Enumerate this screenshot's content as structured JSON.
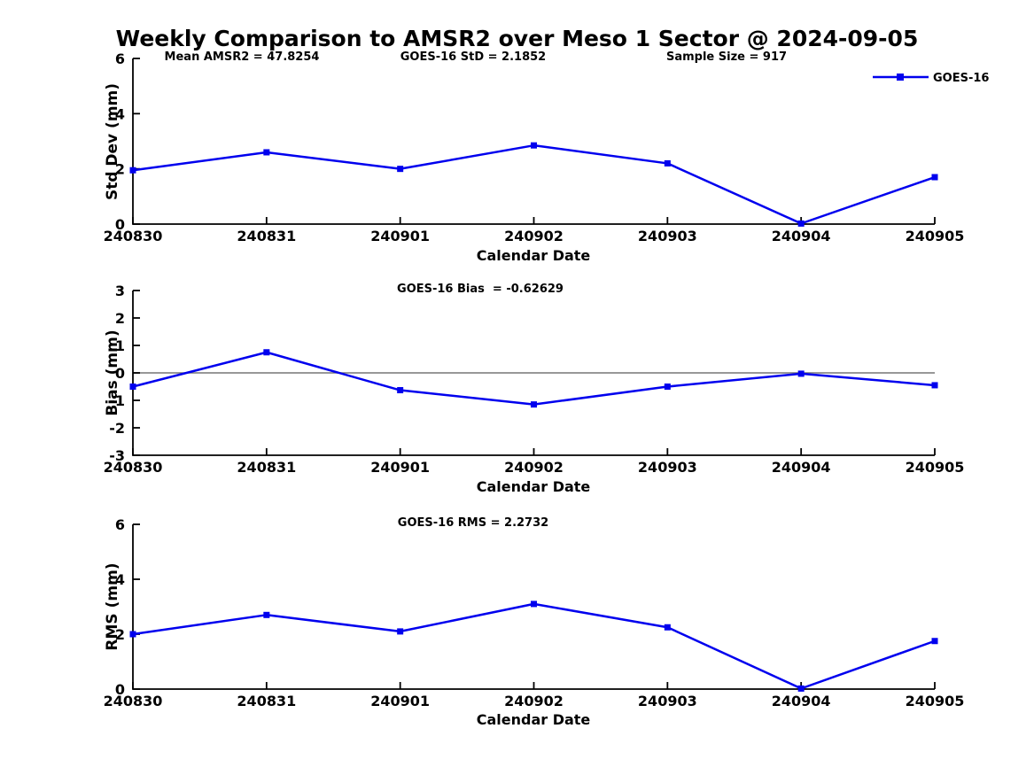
{
  "figure": {
    "title": "Weekly Comparison to AMSR2 over Meso 1 Sector @ 2024-09-05",
    "background": "#FFFFFF"
  },
  "colors": {
    "series_line": "#0000EE",
    "zero_line": "#777777",
    "axis": "#000000",
    "text": "#000000"
  },
  "legend": {
    "label": "GOES-16",
    "position": "top-right"
  },
  "chart_data": [
    {
      "type": "line",
      "name": "std-dev",
      "title": "",
      "annotations": [
        "Mean AMSR2 = 47.8254",
        "GOES-16 StD = 2.1852",
        "Sample Size = 917"
      ],
      "xlabel": "Calendar Date",
      "ylabel": "Std Dev (mm)",
      "ylim": [
        0,
        6
      ],
      "yticks": [
        0,
        2,
        4,
        6
      ],
      "grid": false,
      "marker": "square",
      "categories": [
        "240830",
        "240831",
        "240901",
        "240902",
        "240903",
        "240904",
        "240905"
      ],
      "series": [
        {
          "name": "GOES-16",
          "values": [
            1.95,
            2.6,
            2.0,
            2.85,
            2.2,
            0.02,
            1.7
          ]
        }
      ]
    },
    {
      "type": "line",
      "name": "bias",
      "title": "",
      "annotations": [
        "GOES-16 Bias  = -0.62629"
      ],
      "xlabel": "Calendar Date",
      "ylabel": "Bias (mm)",
      "ylim": [
        -3,
        3
      ],
      "yticks": [
        3,
        2,
        1,
        0,
        -1,
        -2,
        -3
      ],
      "zero_line": true,
      "grid": false,
      "marker": "square",
      "categories": [
        "240830",
        "240831",
        "240901",
        "240902",
        "240903",
        "240904",
        "240905"
      ],
      "series": [
        {
          "name": "GOES-16",
          "values": [
            -0.5,
            0.75,
            -0.63,
            -1.15,
            -0.5,
            -0.03,
            -0.45
          ]
        }
      ]
    },
    {
      "type": "line",
      "name": "rms",
      "title": "",
      "annotations": [
        "GOES-16 RMS = 2.2732"
      ],
      "xlabel": "Calendar Date",
      "ylabel": "RMS (mm)",
      "ylim": [
        0,
        6
      ],
      "yticks": [
        0,
        2,
        4,
        6
      ],
      "grid": false,
      "marker": "square",
      "categories": [
        "240830",
        "240831",
        "240901",
        "240902",
        "240903",
        "240904",
        "240905"
      ],
      "series": [
        {
          "name": "GOES-16",
          "values": [
            2.0,
            2.7,
            2.1,
            3.1,
            2.25,
            0.02,
            1.75
          ]
        }
      ]
    }
  ]
}
